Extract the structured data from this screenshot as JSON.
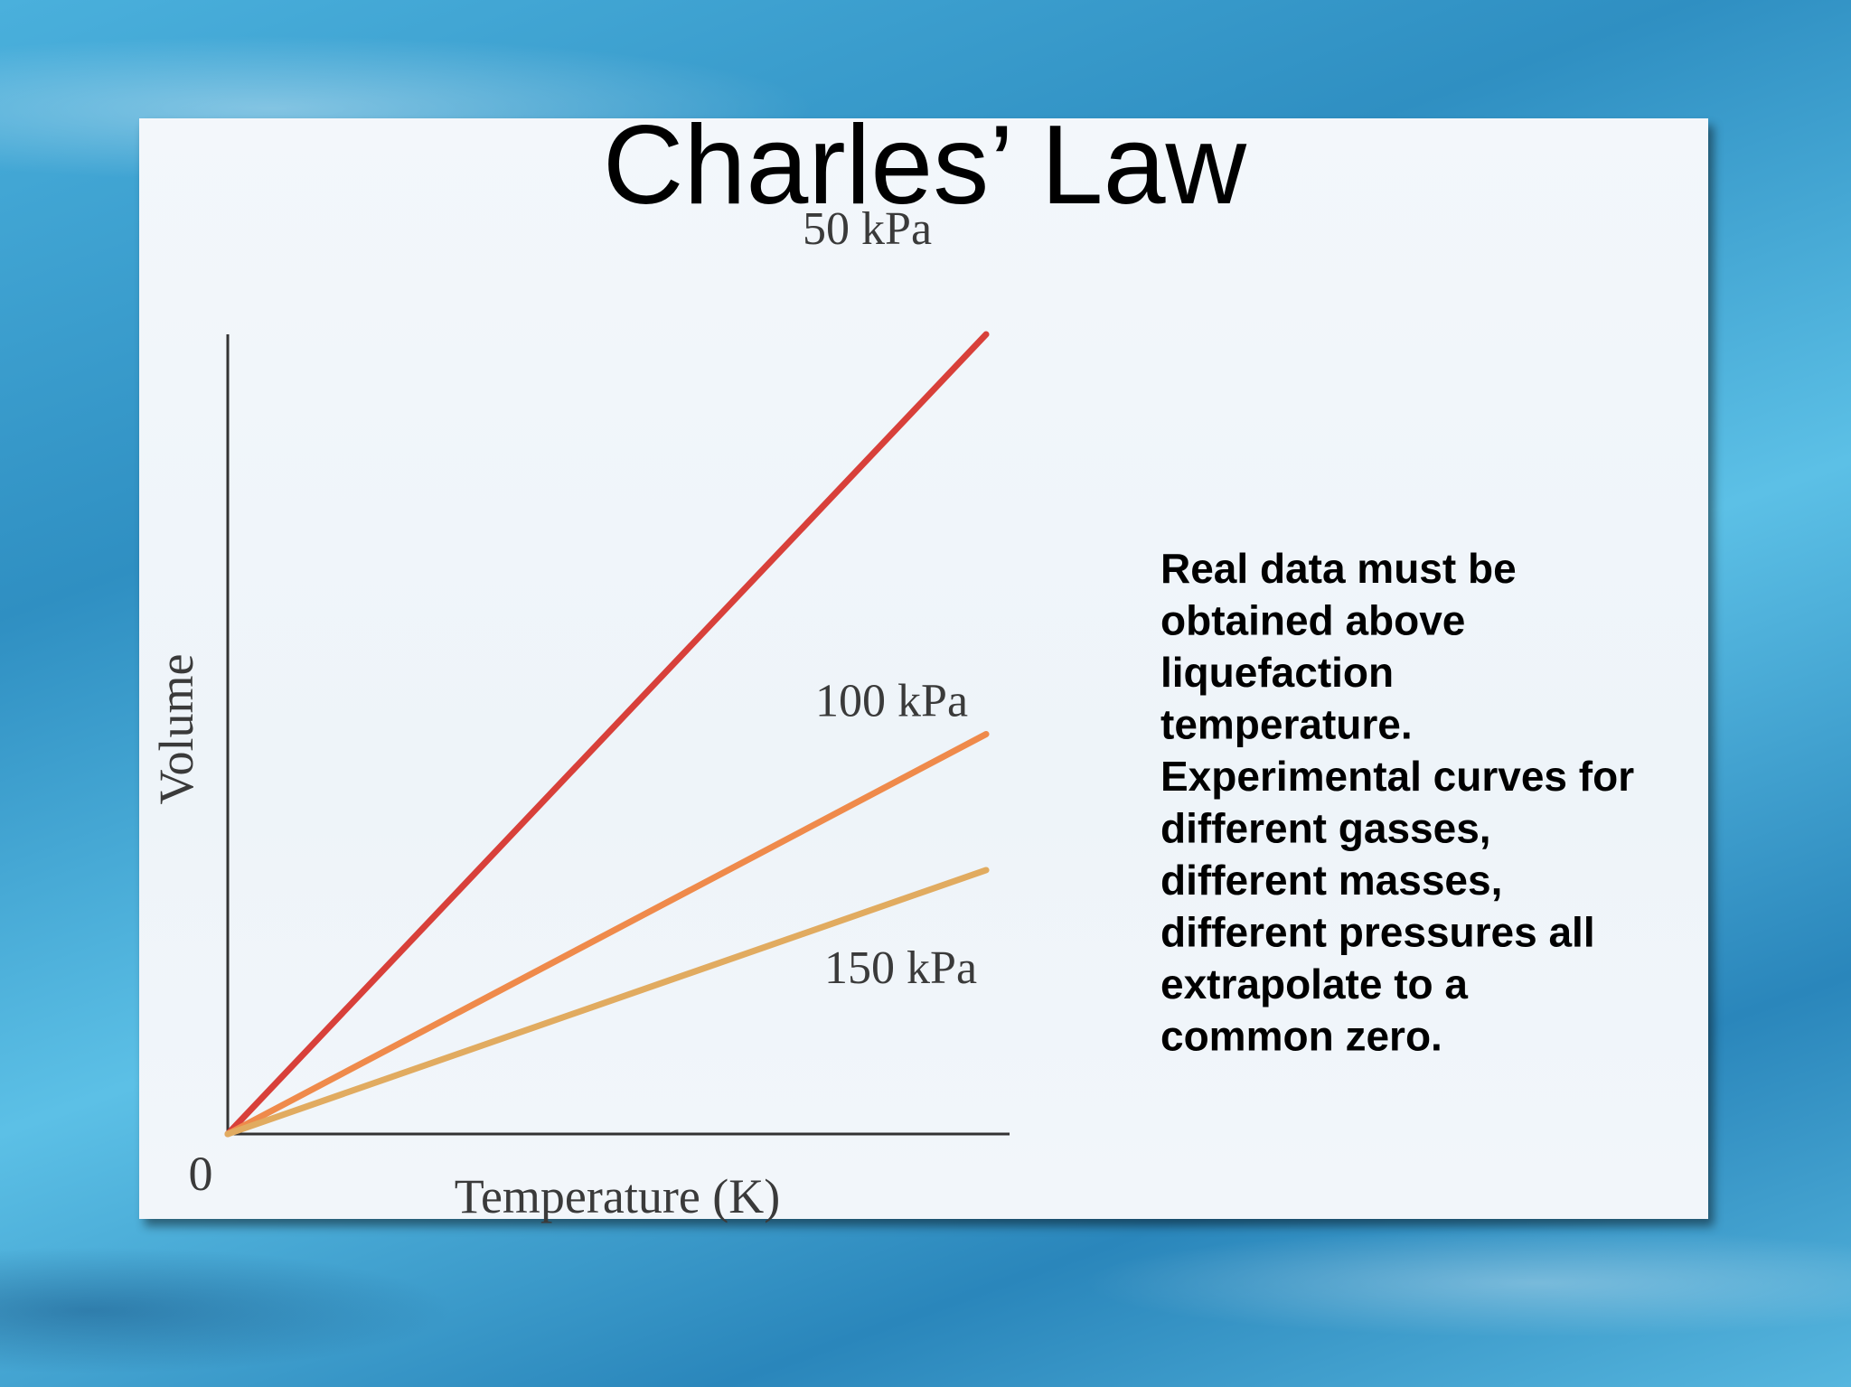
{
  "chart_data": {
    "type": "line",
    "title": "Charles’ Law",
    "x_label": "Temperature (K)",
    "y_label": "Volume",
    "x": [
      0,
      97
    ],
    "series": [
      {
        "name": "50 kPa",
        "color": "#d8403a",
        "values": [
          0,
          100
        ]
      },
      {
        "name": "100 kPa",
        "color": "#ef8a4b",
        "values": [
          0,
          50
        ]
      },
      {
        "name": "150 kPa",
        "color": "#e1ab60",
        "values": [
          0,
          33
        ]
      }
    ],
    "xlim": [
      0,
      100
    ],
    "ylim": [
      0,
      100
    ],
    "xticks": [
      0
    ],
    "grid": false
  },
  "body_text": [
    "Real data must be",
    "obtained above",
    "liquefaction",
    "temperature.",
    "Experimental curves for",
    "different gasses,",
    "different masses,",
    "different pressures all",
    "extrapolate to a",
    "common zero."
  ]
}
